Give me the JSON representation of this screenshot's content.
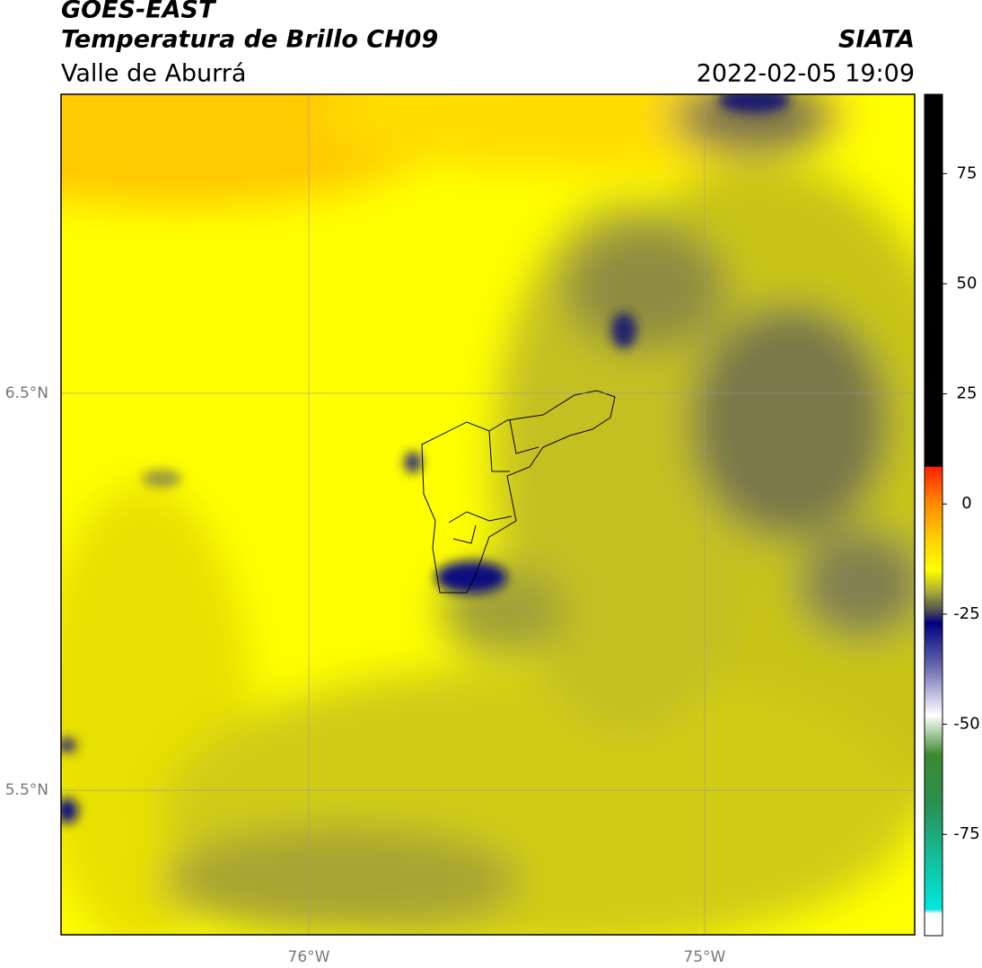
{
  "header": {
    "title": "GOES-EAST",
    "subtitle": "Temperatura de Brillo CH09",
    "region": "Valle de Aburrá",
    "source": "SIATA",
    "datetime": "2022-02-05 19:09"
  },
  "map": {
    "xlim": [
      -76.626,
      -74.469
    ],
    "ylim": [
      5.136,
      7.253
    ],
    "xticks": [
      {
        "value": -76,
        "label": "76°W"
      },
      {
        "value": -75,
        "label": "75°W"
      }
    ],
    "yticks": [
      {
        "value": 6.5,
        "label": "6.5°N"
      },
      {
        "value": 5.5,
        "label": "5.5°N"
      }
    ],
    "grid": true
  },
  "colorbar": {
    "ylim": [
      -98,
      93
    ],
    "ticks": [
      75,
      50,
      25,
      0,
      -25,
      -50,
      -75
    ],
    "colormap": [
      {
        "value": 93,
        "color": "#000000"
      },
      {
        "value": 8.5,
        "color": "#000000"
      },
      {
        "value": 8.4,
        "color": "#ff2000"
      },
      {
        "value": 0,
        "color": "#ff8c00"
      },
      {
        "value": -8,
        "color": "#ffd000"
      },
      {
        "value": -15,
        "color": "#ffff00"
      },
      {
        "value": -20,
        "color": "#a8a838"
      },
      {
        "value": -24,
        "color": "#555550"
      },
      {
        "value": -27,
        "color": "#000080"
      },
      {
        "value": -37,
        "color": "#6a6ab0"
      },
      {
        "value": -48,
        "color": "#ffffff"
      },
      {
        "value": -57,
        "color": "#3a8a30"
      },
      {
        "value": -68,
        "color": "#2a9050"
      },
      {
        "value": -92,
        "color": "#00e8e0"
      },
      {
        "value": -93,
        "color": "#ffffff"
      },
      {
        "value": -98,
        "color": "#ffffff"
      }
    ]
  }
}
